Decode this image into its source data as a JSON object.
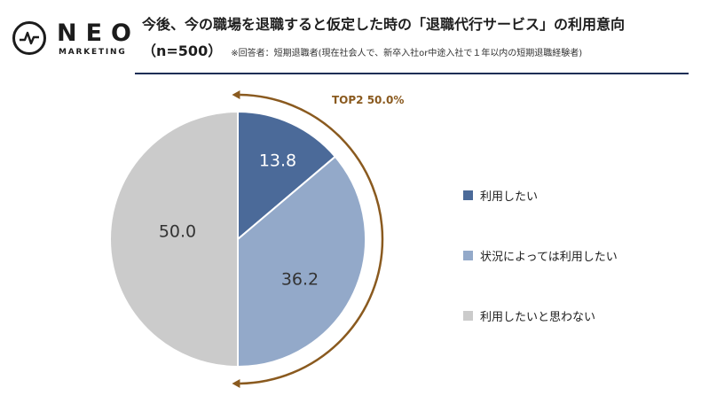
{
  "logo": {
    "word": "NEO",
    "sub": "MARKETING"
  },
  "header": {
    "title": "今後、今の職場を退職すると仮定した時の「退職代行サービス」の利用意向",
    "sample": "（n=500）",
    "note": "※回答者：短期退職者(現在社会人で、新卒入社or中途入社で１年以内の短期退職経験者)"
  },
  "colors": {
    "rule": "#1a2d55",
    "arrow": "#8a5a1f",
    "top2_text": "#8a5a1f"
  },
  "chart_data": {
    "type": "pie",
    "unit": "%",
    "annotation": "TOP2 50.0%",
    "slices": [
      {
        "label": "利用したい",
        "value": 13.8,
        "display": "13.8",
        "color": "#4b6a99",
        "text_color": "#ffffff"
      },
      {
        "label": "状況によっては利用したい",
        "value": 36.2,
        "display": "36.2",
        "color": "#93a9c9",
        "text_color": "#333333"
      },
      {
        "label": "利用したいと思わない",
        "value": 50.0,
        "display": "50.0",
        "color": "#cbcbcb",
        "text_color": "#333333"
      }
    ],
    "legend_position": "right"
  }
}
